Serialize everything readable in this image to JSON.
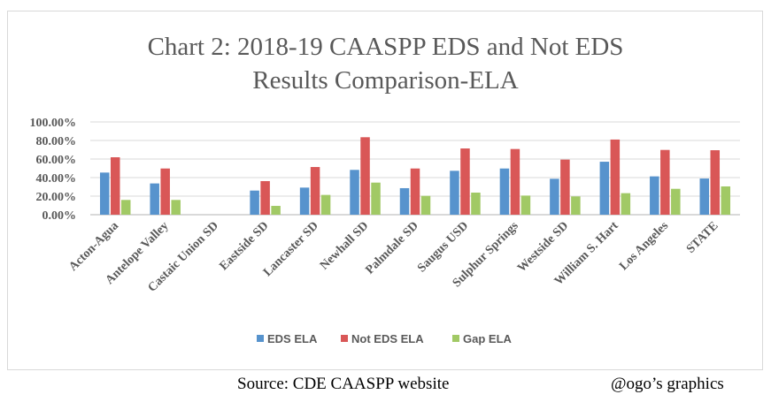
{
  "chart_data": {
    "type": "bar",
    "title_lines": [
      "Chart 2: 2018-19 CAASPP EDS and Not EDS",
      "Results Comparison-ELA"
    ],
    "categories": [
      "Acton-Agua",
      "Antelope Valley",
      "Castaic Union SD",
      "Eastside SD",
      "Lancaster SD",
      "Newhall SD",
      "Palmdale SD",
      "Saugus USD",
      "Sulphur Springs",
      "Westside SD",
      "William S. Hart",
      "Los Angeles",
      "STATE"
    ],
    "series": [
      {
        "name": "EDS ELA",
        "color": "#5793cd",
        "values": [
          45.4,
          33.7,
          null,
          26.0,
          29.2,
          48.3,
          28.6,
          47.3,
          49.8,
          38.7,
          57.1,
          41.3,
          39.0
        ]
      },
      {
        "name": "Not EDS ELA",
        "color": "#d95757",
        "values": [
          61.9,
          49.8,
          null,
          36.2,
          51.4,
          83.5,
          49.8,
          71.4,
          70.8,
          59.4,
          81.0,
          69.8,
          69.5
        ]
      },
      {
        "name": "Gap ELA",
        "color": "#a1c965",
        "values": [
          15.9,
          15.9,
          null,
          9.5,
          21.3,
          34.6,
          20.3,
          23.8,
          20.6,
          19.7,
          23.2,
          27.9,
          30.5
        ]
      }
    ],
    "yticks": [
      "0.00%",
      "20.00%",
      "40.00%",
      "60.00%",
      "80.00%",
      "100.00%"
    ],
    "ylim": [
      0,
      100
    ],
    "grid": true,
    "legend": "bottom"
  },
  "footer": {
    "source": "Source: CDE CAASPP website",
    "credit": "@ogo’s graphics"
  }
}
